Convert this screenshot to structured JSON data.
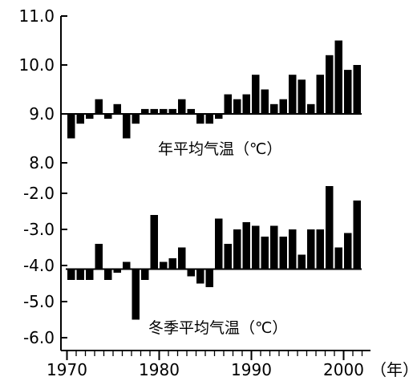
{
  "chart_data": [
    {
      "type": "bar",
      "title": "年平均气温（℃）",
      "baseline": 9.0,
      "ylim": [
        8.0,
        11.0
      ],
      "yticks": [
        "11.0",
        "10.0",
        "9.0",
        "8.0"
      ],
      "x": [
        1970,
        1971,
        1972,
        1973,
        1974,
        1975,
        1976,
        1977,
        1978,
        1979,
        1980,
        1981,
        1982,
        1983,
        1984,
        1985,
        1986,
        1987,
        1988,
        1989,
        1990,
        1991,
        1992,
        1993,
        1994,
        1995,
        1996,
        1997,
        1998,
        1999,
        2000,
        2001
      ],
      "values": [
        8.5,
        8.8,
        8.9,
        9.3,
        8.9,
        9.2,
        8.5,
        8.8,
        9.1,
        9.1,
        9.1,
        9.1,
        9.3,
        9.1,
        8.8,
        8.8,
        8.9,
        9.4,
        9.3,
        9.4,
        9.8,
        9.5,
        9.2,
        9.3,
        9.8,
        9.7,
        9.2,
        9.8,
        10.2,
        10.5,
        9.9,
        10.0
      ],
      "color": "#000000"
    },
    {
      "type": "bar",
      "title": "冬季平均气温（℃）",
      "baseline": -4.1,
      "ylim": [
        -6.0,
        -2.0
      ],
      "yticks": [
        "-2.0",
        "-3.0",
        "-4.0",
        "-5.0",
        "-6.0"
      ],
      "x": [
        1970,
        1971,
        1972,
        1973,
        1974,
        1975,
        1976,
        1977,
        1978,
        1979,
        1980,
        1981,
        1982,
        1983,
        1984,
        1985,
        1986,
        1987,
        1988,
        1989,
        1990,
        1991,
        1992,
        1993,
        1994,
        1995,
        1996,
        1997,
        1998,
        1999,
        2000,
        2001
      ],
      "values": [
        -4.4,
        -4.4,
        -4.4,
        -3.4,
        -4.4,
        -4.2,
        -3.9,
        -5.5,
        -4.4,
        -2.6,
        -3.9,
        -3.8,
        -3.5,
        -4.3,
        -4.5,
        -4.6,
        -2.7,
        -3.4,
        -3.0,
        -2.8,
        -2.9,
        -3.2,
        -2.9,
        -3.2,
        -3.0,
        -3.7,
        -3.0,
        -3.0,
        -1.8,
        -3.5,
        -3.1,
        -2.2
      ],
      "color": "#000000"
    }
  ],
  "x_axis": {
    "ticks": [
      "1970",
      "1980",
      "1990",
      "2000"
    ],
    "unit": "（年）"
  }
}
